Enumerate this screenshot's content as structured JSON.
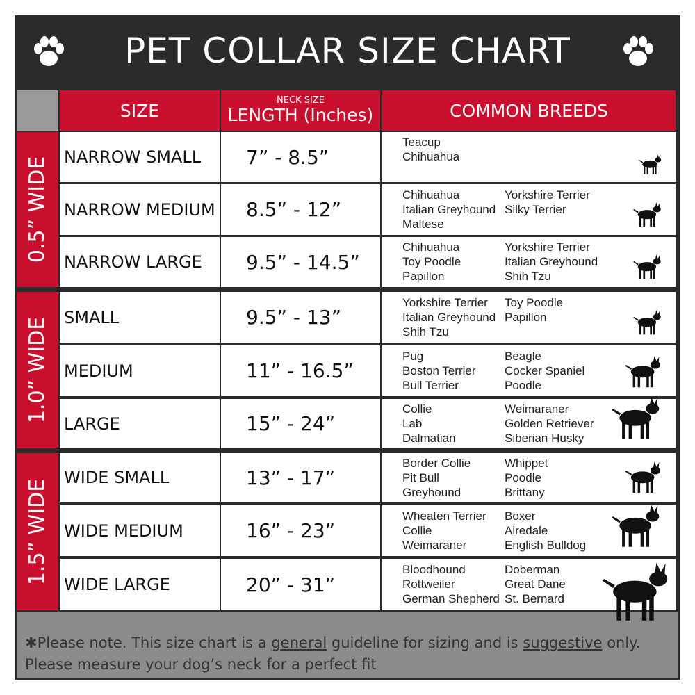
{
  "title": "PET COLLAR SIZE CHART",
  "header": {
    "size": "SIZE",
    "neck_size": "NECK SIZE",
    "length": "LENGTH (Inches)",
    "breeds": "COMMON BREEDS"
  },
  "groups": [
    {
      "label": "0.5” WIDE",
      "rows": [
        {
          "size": "NARROW SMALL",
          "length": "7” - 8.5”",
          "breeds_left": [
            "Teacup",
            "Chihuahua"
          ],
          "breeds_right": []
        },
        {
          "size": "NARROW MEDIUM",
          "length": "8.5” - 12”",
          "breeds_left": [
            "Chihuahua",
            "Italian Greyhound",
            "Maltese"
          ],
          "breeds_right": [
            "Yorkshire Terrier",
            "Silky Terrier"
          ]
        },
        {
          "size": "NARROW LARGE",
          "length": "9.5” - 14.5”",
          "breeds_left": [
            "Chihuahua",
            "Toy Poodle",
            "Papillon"
          ],
          "breeds_right": [
            "Yorkshire Terrier",
            "Italian Greyhound",
            "Shih Tzu"
          ]
        }
      ]
    },
    {
      "label": "1.0” WIDE",
      "rows": [
        {
          "size": "SMALL",
          "length": "9.5” - 13”",
          "breeds_left": [
            "Yorkshire Terrier",
            "Italian Greyhound",
            "Shih Tzu"
          ],
          "breeds_right": [
            "Toy Poodle",
            "Papillon"
          ]
        },
        {
          "size": "MEDIUM",
          "length": "11” - 16.5”",
          "breeds_left": [
            "Pug",
            "Boston Terrier",
            "Bull Terrier"
          ],
          "breeds_right": [
            "Beagle",
            "Cocker Spaniel",
            "Poodle"
          ]
        },
        {
          "size": "LARGE",
          "length": "15” - 24”",
          "breeds_left": [
            "Collie",
            "Lab",
            "Dalmatian"
          ],
          "breeds_right": [
            "Weimaraner",
            "Golden Retriever",
            "Siberian Husky"
          ]
        }
      ]
    },
    {
      "label": "1.5” WIDE",
      "rows": [
        {
          "size": "WIDE SMALL",
          "length": "13” - 17”",
          "breeds_left": [
            "Border Collie",
            "Pit Bull",
            "Greyhound"
          ],
          "breeds_right": [
            "Whippet",
            "Poodle",
            "Brittany"
          ]
        },
        {
          "size": "WIDE MEDIUM",
          "length": "16” - 23”",
          "breeds_left": [
            "Wheaten Terrier",
            "Collie",
            "Weimaraner"
          ],
          "breeds_right": [
            "Boxer",
            "Airedale",
            "English Bulldog"
          ]
        },
        {
          "size": "WIDE LARGE",
          "length": "20” - 31”",
          "breeds_left": [
            "Bloodhound",
            "Rottweiler",
            "German Shepherd"
          ],
          "breeds_right": [
            "Doberman",
            "Great Dane",
            "St. Bernard"
          ]
        }
      ]
    }
  ],
  "note": {
    "line1": [
      "✱Please note. This size chart is a",
      "general",
      "guideline for sizing and is",
      "suggestive",
      "only."
    ],
    "line2": "Please measure your dog’s neck for a perfect fit"
  }
}
